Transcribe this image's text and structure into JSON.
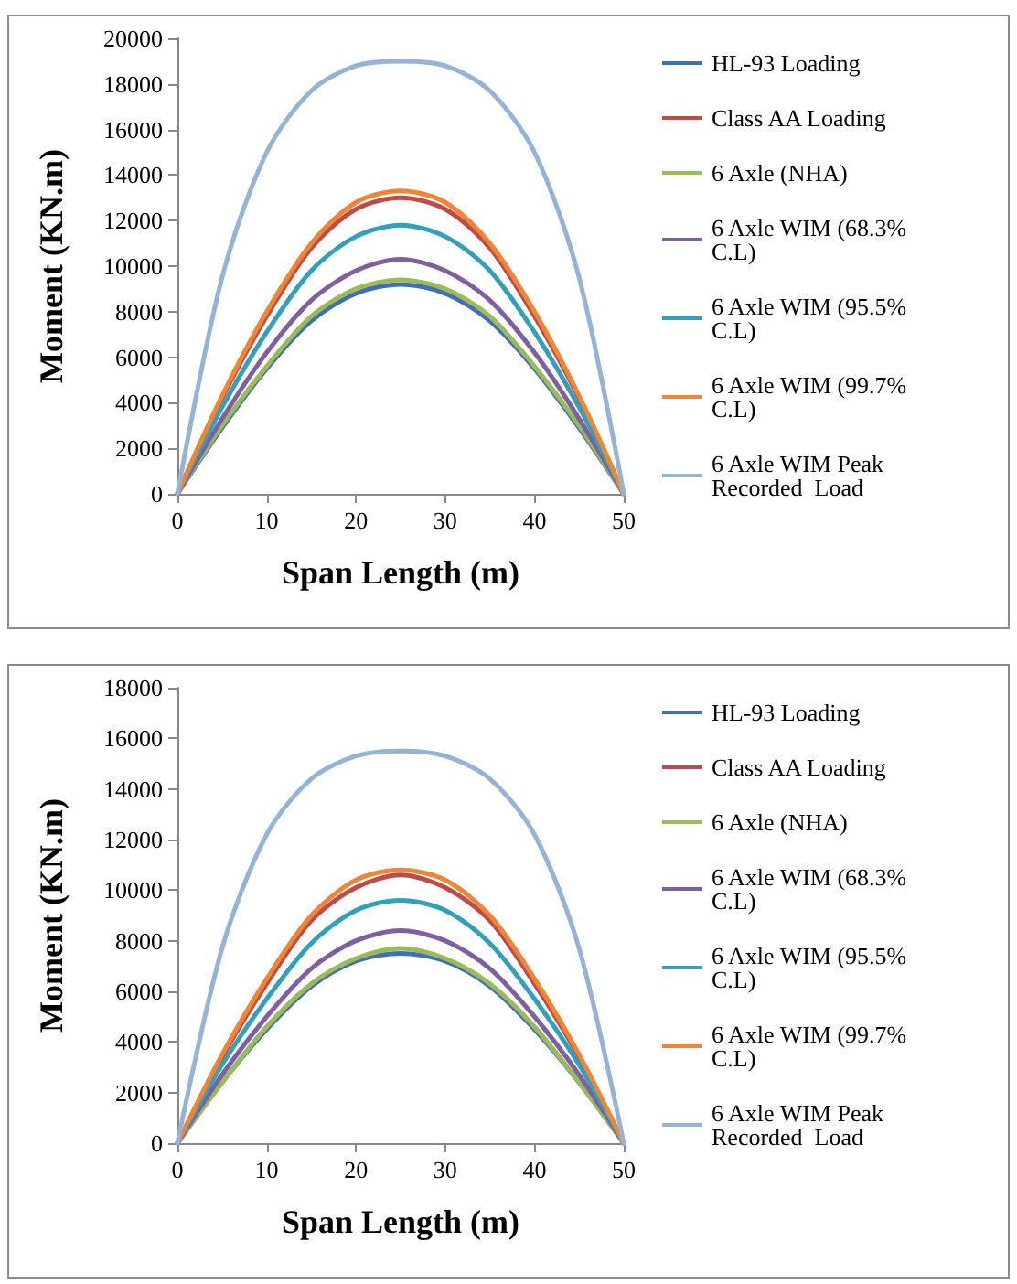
{
  "chart_data": [
    {
      "type": "line",
      "xlabel": "Span Length (m)",
      "ylabel": "Moment (KN.m)",
      "x": [
        0,
        5,
        10,
        15,
        20,
        25,
        30,
        35,
        40,
        45,
        50
      ],
      "xlim": [
        0,
        50
      ],
      "xticks": [
        0,
        10,
        20,
        30,
        40,
        50
      ],
      "ylim": [
        0,
        20000
      ],
      "yticks": [
        0,
        2000,
        4000,
        6000,
        8000,
        10000,
        12000,
        14000,
        16000,
        18000,
        20000
      ],
      "grid": false,
      "legend": "right",
      "marker": "none",
      "line_style": "solid",
      "series": [
        {
          "name": "HL-93 Loading",
          "color": "#3f6fb5",
          "values": [
            0,
            2900,
            5500,
            7600,
            8800,
            9200,
            8800,
            7600,
            5500,
            2900,
            0
          ]
        },
        {
          "name": "Class AA Loading",
          "color": "#be4b48",
          "values": [
            0,
            4200,
            7800,
            10800,
            12500,
            13000,
            12500,
            10800,
            7800,
            4200,
            0
          ]
        },
        {
          "name": "6 Axle (NHA)",
          "color": "#9bbb59",
          "values": [
            0,
            3000,
            5600,
            7800,
            9000,
            9400,
            9000,
            7800,
            5600,
            3000,
            0
          ]
        },
        {
          "name": "6 Axle WIM (68.3% C.L)",
          "color": "#7f5fa0",
          "values": [
            0,
            3300,
            6200,
            8500,
            9800,
            10300,
            9800,
            8500,
            6200,
            3300,
            0
          ]
        },
        {
          "name": "6 Axle WIM (95.5% C.L)",
          "color": "#31a1bb",
          "values": [
            0,
            3800,
            7100,
            9800,
            11300,
            11800,
            11300,
            9800,
            7100,
            3800,
            0
          ]
        },
        {
          "name": "6 Axle WIM (99.7% C.L)",
          "color": "#f08535",
          "values": [
            0,
            4300,
            8000,
            11000,
            12800,
            13300,
            12800,
            11000,
            8000,
            4300,
            0
          ]
        },
        {
          "name": "6 Axle WIM Peak Recorded  Load",
          "color": "#95b3d7",
          "values": [
            0,
            9500,
            15000,
            17700,
            18800,
            19000,
            18800,
            17700,
            15000,
            9500,
            0
          ]
        }
      ]
    },
    {
      "type": "line",
      "xlabel": "Span Length (m)",
      "ylabel": "Moment (KN.m)",
      "x": [
        0,
        5,
        10,
        15,
        20,
        25,
        30,
        35,
        40,
        45,
        50
      ],
      "xlim": [
        0,
        50
      ],
      "xticks": [
        0,
        10,
        20,
        30,
        40,
        50
      ],
      "ylim": [
        0,
        18000
      ],
      "yticks": [
        0,
        2000,
        4000,
        6000,
        8000,
        10000,
        12000,
        14000,
        16000,
        18000
      ],
      "grid": false,
      "legend": "right",
      "marker": "none",
      "line_style": "solid",
      "series": [
        {
          "name": "HL-93 Loading",
          "color": "#3f6fb5",
          "values": [
            0,
            2400,
            4500,
            6200,
            7200,
            7500,
            7200,
            6200,
            4500,
            2400,
            0
          ]
        },
        {
          "name": "Class AA Loading",
          "color": "#be4b48",
          "values": [
            0,
            3400,
            6300,
            8800,
            10100,
            10600,
            10100,
            8800,
            6300,
            3400,
            0
          ]
        },
        {
          "name": "6 Axle (NHA)",
          "color": "#9bbb59",
          "values": [
            0,
            2400,
            4600,
            6300,
            7300,
            7700,
            7300,
            6300,
            4600,
            2400,
            0
          ]
        },
        {
          "name": "6 Axle WIM (68.3% C.L)",
          "color": "#7f5fa0",
          "values": [
            0,
            2700,
            5000,
            6900,
            8000,
            8400,
            8000,
            6900,
            5000,
            2700,
            0
          ]
        },
        {
          "name": "6 Axle WIM (95.5% C.L)",
          "color": "#31a1bb",
          "values": [
            0,
            3100,
            5700,
            7900,
            9200,
            9600,
            9200,
            7900,
            5700,
            3100,
            0
          ]
        },
        {
          "name": "6 Axle WIM (99.7% C.L)",
          "color": "#f08535",
          "values": [
            0,
            3500,
            6500,
            9000,
            10400,
            10800,
            10400,
            9000,
            6500,
            3500,
            0
          ]
        },
        {
          "name": "6 Axle WIM Peak Recorded  Load",
          "color": "#95b3d7",
          "values": [
            0,
            7700,
            12200,
            14400,
            15300,
            15500,
            15300,
            14400,
            12200,
            7700,
            0
          ]
        }
      ]
    }
  ]
}
